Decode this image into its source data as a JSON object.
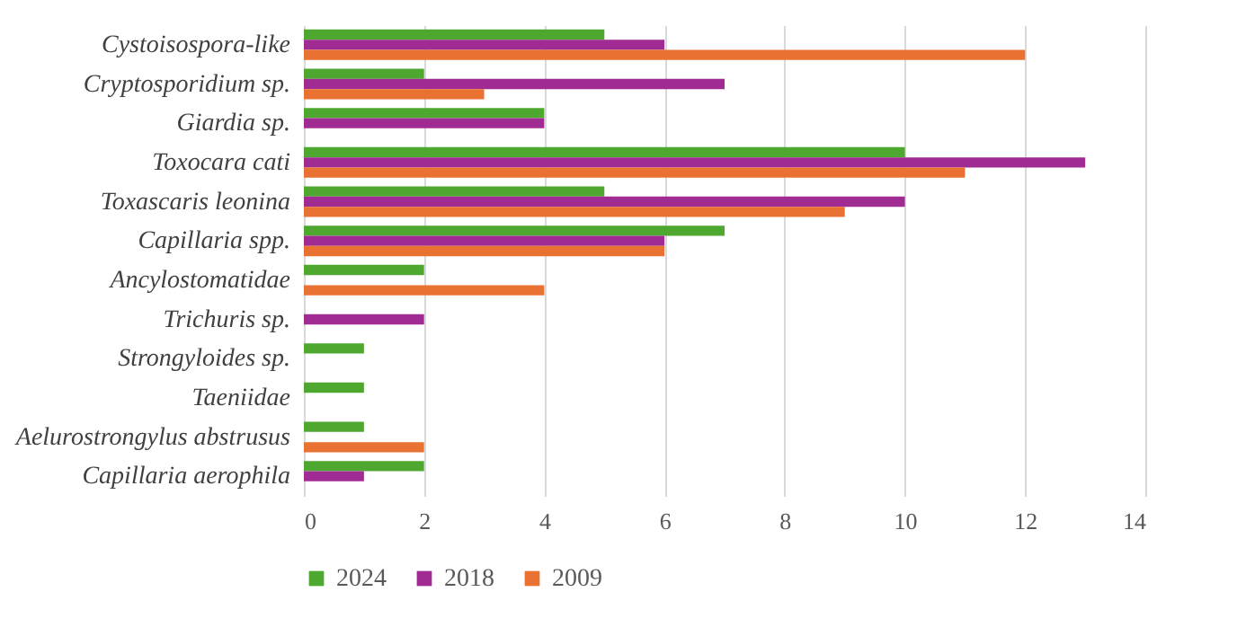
{
  "chart_data": {
    "type": "bar",
    "orientation": "horizontal",
    "categories": [
      "Cystoisospora-like",
      "Cryptosporidium sp.",
      "Giardia sp.",
      "Toxocara cati",
      "Toxascaris leonina",
      "Capillaria spp.",
      "Ancylostomatidae",
      "Trichuris sp.",
      "Strongyloides sp.",
      "Taeniidae",
      "Aelurostrongylus abstrusus",
      "Capillaria aerophila"
    ],
    "series": [
      {
        "name": "2024",
        "color": "#4ea72e",
        "values": [
          5,
          2,
          4,
          10,
          5,
          7,
          2,
          null,
          1,
          1,
          1,
          2
        ]
      },
      {
        "name": "2018",
        "color": "#a02b93",
        "values": [
          6,
          7,
          4,
          13,
          10,
          6,
          null,
          2,
          null,
          null,
          null,
          1
        ]
      },
      {
        "name": "2009",
        "color": "#e97132",
        "values": [
          12,
          3,
          null,
          11,
          9,
          6,
          4,
          null,
          null,
          null,
          2,
          null
        ]
      }
    ],
    "xlim": [
      0,
      14
    ],
    "xticks": [
      0,
      2,
      4,
      6,
      8,
      10,
      12,
      14
    ],
    "grid": "x",
    "legend": "bottom"
  }
}
